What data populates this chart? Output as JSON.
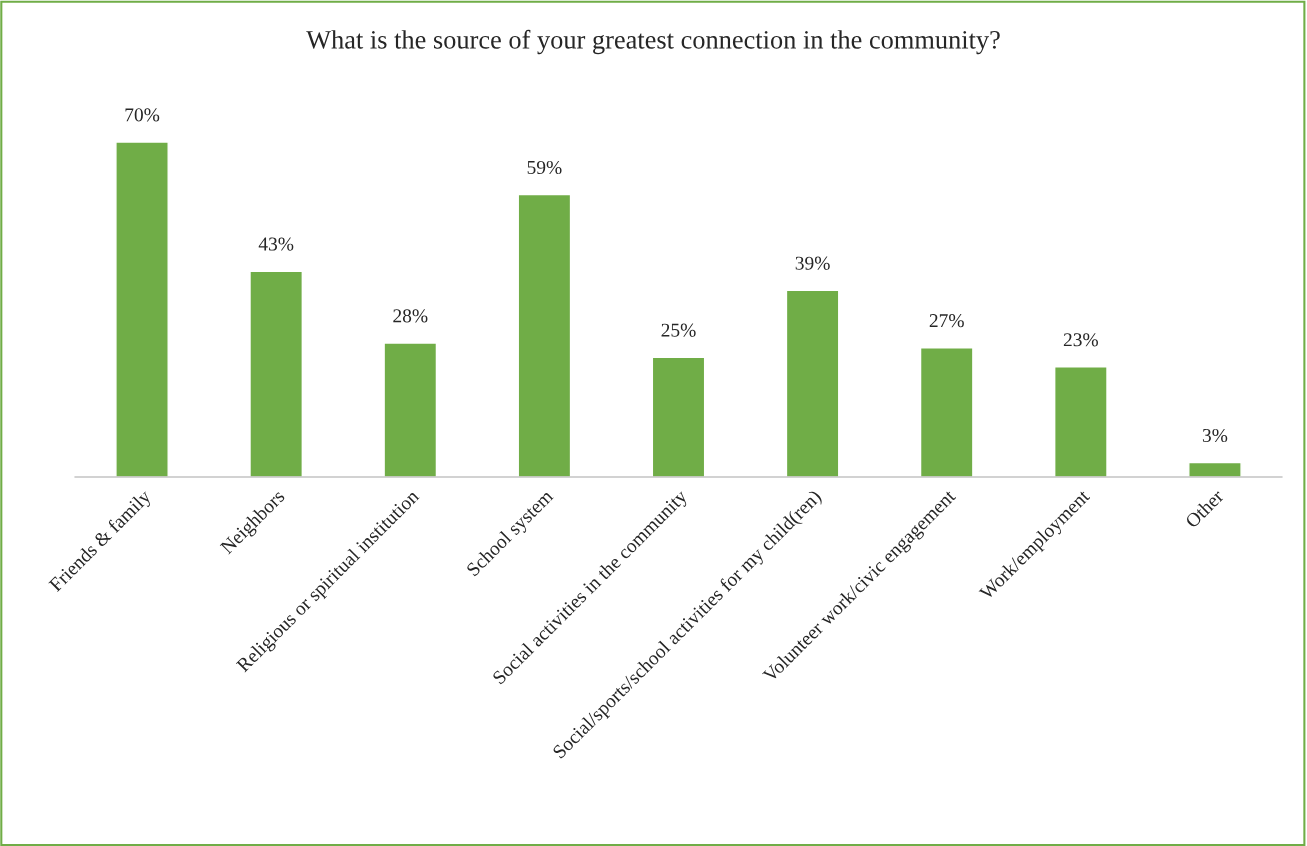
{
  "chart_data": {
    "type": "bar",
    "title": "What is the source of your greatest connection in the community?",
    "categories": [
      "Friends & family",
      "Neighbors",
      "Religious or spiritual institution",
      "School system",
      "Social activities in the community",
      "Social/sports/school activities for my child(ren)",
      "Volunteer work/civic engagement",
      "Work/employment",
      "Other"
    ],
    "values": [
      70,
      43,
      28,
      59,
      25,
      39,
      27,
      23,
      3
    ],
    "value_labels": [
      "70%",
      "43%",
      "28%",
      "59%",
      "25%",
      "39%",
      "27%",
      "23%",
      "3%"
    ],
    "color": "#70ad47",
    "grid": false,
    "legend": false
  }
}
